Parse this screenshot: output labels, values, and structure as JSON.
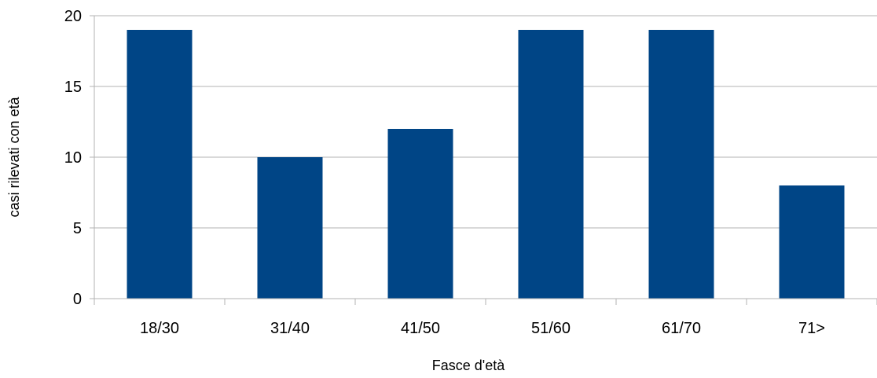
{
  "chart_data": {
    "type": "bar",
    "categories": [
      "18/30",
      "31/40",
      "41/50",
      "51/60",
      "61/70",
      "71>"
    ],
    "values": [
      19,
      10,
      12,
      19,
      19,
      8
    ],
    "xlabel": "Fasce d'età",
    "ylabel": "casi rilevati con età",
    "ylim": [
      0,
      20
    ],
    "yticks": [
      "0",
      "5",
      "10",
      "15",
      "20"
    ],
    "grid": true,
    "colors": {
      "bar": "#004586",
      "grid": "#b3b3b3"
    }
  }
}
